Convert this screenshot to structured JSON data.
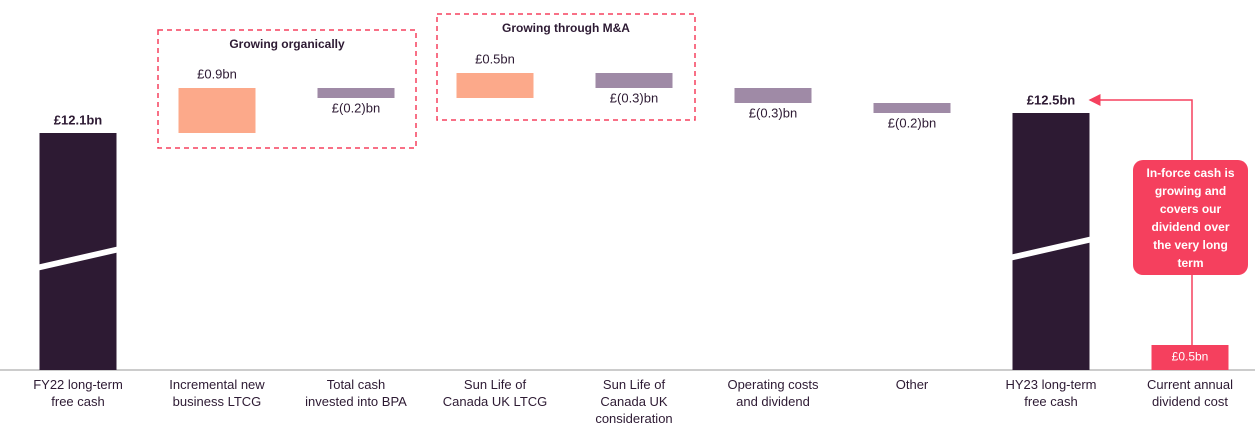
{
  "chart_data": {
    "type": "waterfall",
    "categories": [
      "FY22 long-term free cash",
      "Incremental new business LTCG",
      "Total cash invested into BPA",
      "Sun Life of Canada UK LTCG",
      "Sun Life of Canada UK consideration",
      "Operating costs and dividend",
      "Other",
      "HY23 long-term free cash",
      "Current annual dividend cost"
    ],
    "values": [
      12.1,
      0.9,
      -0.2,
      0.5,
      -0.3,
      -0.3,
      -0.2,
      12.5,
      0.5
    ],
    "value_labels": [
      "£12.1bn",
      "£0.9bn",
      "£(0.2)bn",
      "£0.5bn",
      "£(0.3)bn",
      "£(0.3)bn",
      "£(0.2)bn",
      "£12.5bn",
      "£0.5bn"
    ],
    "measure": [
      "absolute",
      "relative",
      "relative",
      "relative",
      "relative",
      "relative",
      "relative",
      "absolute",
      "absolute"
    ],
    "colors": [
      "#2d1a33",
      "#fca98a",
      "#9f8aa6",
      "#fca98a",
      "#9f8aa6",
      "#9f8aa6",
      "#9f8aa6",
      "#2d1a33",
      "#f5405e"
    ],
    "axis_break": true,
    "annotations": [
      "Growing organically",
      "Growing through M&A",
      "In-force cash is growing and covers our dividend over the very long term"
    ]
  }
}
